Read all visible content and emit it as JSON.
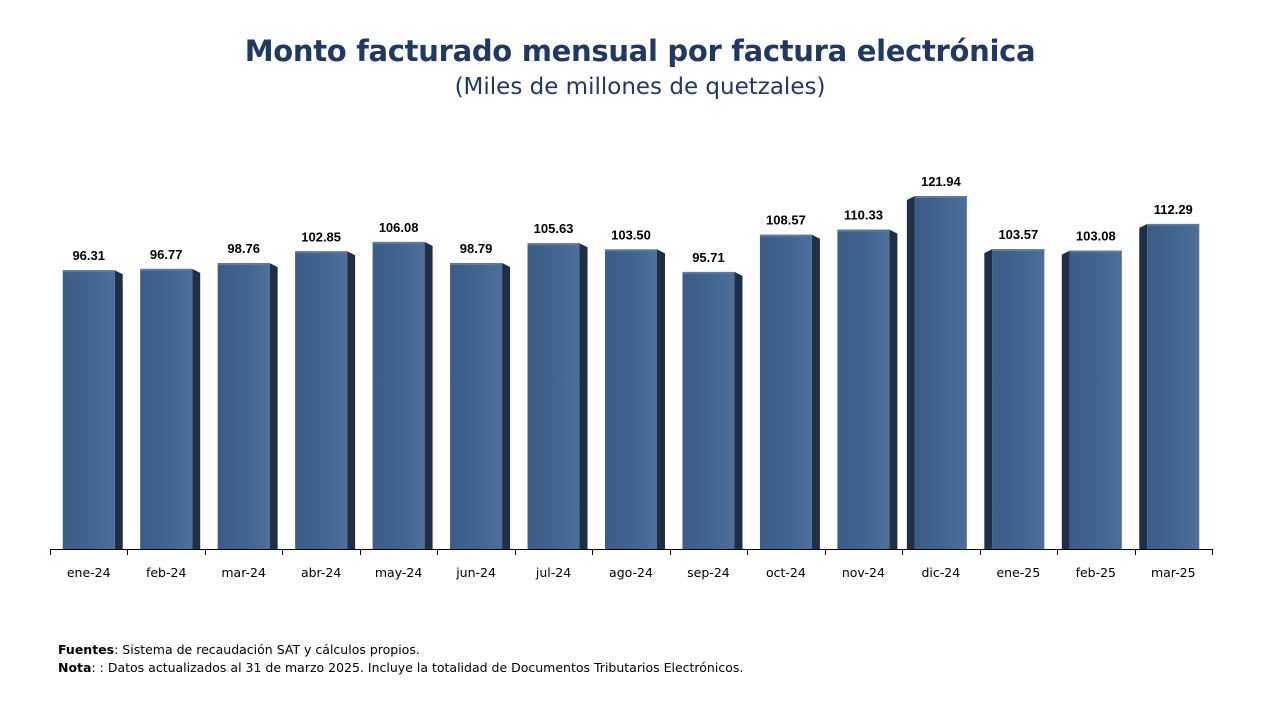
{
  "chart_data": {
    "type": "bar",
    "title": "Monto facturado mensual por factura electrónica",
    "subtitle": "(Miles de millones de quetzales)",
    "categories": [
      "ene-24",
      "feb-24",
      "mar-24",
      "abr-24",
      "may-24",
      "jun-24",
      "jul-24",
      "ago-24",
      "sep-24",
      "oct-24",
      "nov-24",
      "dic-24",
      "ene-25",
      "feb-25",
      "mar-25"
    ],
    "values": [
      96.31,
      96.77,
      98.76,
      102.85,
      106.08,
      98.79,
      105.63,
      103.5,
      95.71,
      108.57,
      110.33,
      121.94,
      103.57,
      103.08,
      112.29
    ],
    "value_labels": [
      "96.31",
      "96.77",
      "98.76",
      "102.85",
      "106.08",
      "98.79",
      "105.63",
      "103.50",
      "95.71",
      "108.57",
      "110.33",
      "121.94",
      "103.57",
      "103.08",
      "112.29"
    ],
    "ylim": [
      0,
      121.94
    ],
    "grid": false,
    "colors": {
      "bar": "#42658f",
      "bar_side": "#1e2f47",
      "bar_top": "#5a7ba3",
      "title": "#1f3864"
    }
  },
  "footer": {
    "sources_label": "Fuentes",
    "sources_text": " Sistema de recaudación SAT y cálculos propios.",
    "note_label": "Nota",
    "note_text": ": : Datos actualizados al 31 de marzo 2025.  Incluye la totalidad de Documentos Tributarios Electrónicos."
  }
}
